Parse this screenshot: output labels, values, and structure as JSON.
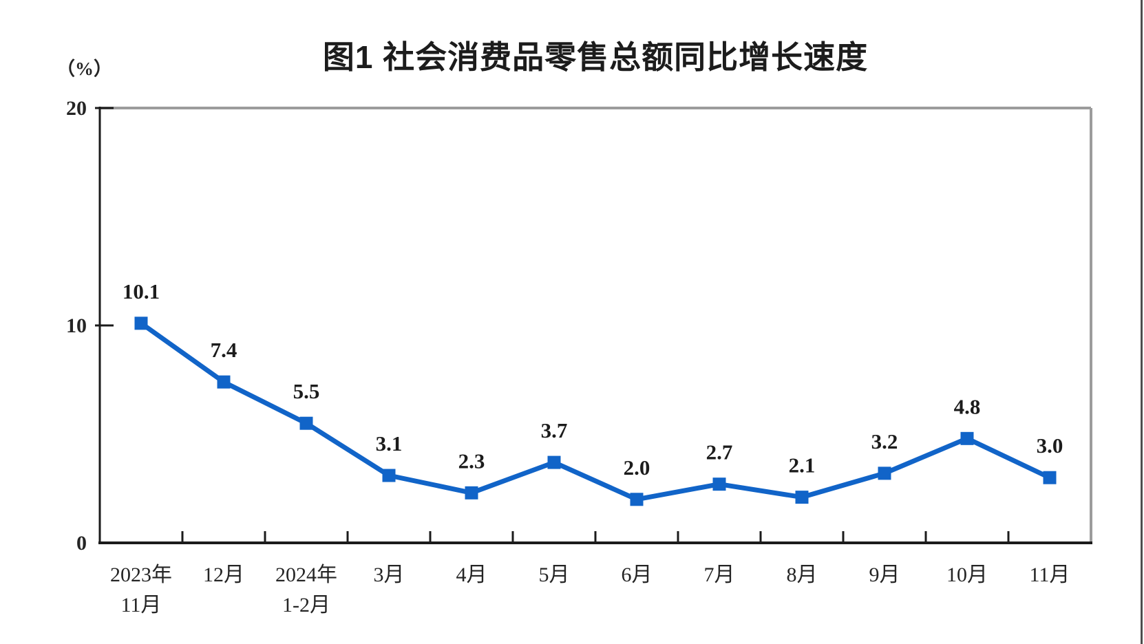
{
  "page": {
    "background_color": "#ffffff",
    "edge_line_color": "#4d4d4d"
  },
  "chart_data": {
    "type": "line",
    "title": "图1  社会消费品零售总额同比增长速度",
    "ylabel": "（%）",
    "categories": [
      [
        "2023年",
        "11月"
      ],
      [
        "12月"
      ],
      [
        "2024年",
        "1-2月"
      ],
      [
        "3月"
      ],
      [
        "4月"
      ],
      [
        "5月"
      ],
      [
        "6月"
      ],
      [
        "7月"
      ],
      [
        "8月"
      ],
      [
        "9月"
      ],
      [
        "10月"
      ],
      [
        "11月"
      ]
    ],
    "values": [
      10.1,
      7.4,
      5.5,
      3.1,
      2.3,
      3.7,
      2.0,
      2.7,
      2.1,
      3.2,
      4.8,
      3.0
    ],
    "data_labels": [
      "10.1",
      "7.4",
      "5.5",
      "3.1",
      "2.3",
      "3.7",
      "2.0",
      "2.7",
      "2.1",
      "3.2",
      "4.8",
      "3.0"
    ],
    "ylim": [
      0,
      20
    ],
    "yticks": [
      0,
      10,
      20
    ],
    "grid": false,
    "legend": "none",
    "line_color": "#1164c8",
    "marker": "square",
    "text_color": "#1c1c1c",
    "axis_label_color": "#242424",
    "frame_colors": {
      "top": "#9c9c9c",
      "right": "#9c9c9c",
      "left": "#1b1b1b",
      "bottom": "#1b1b1b"
    }
  }
}
